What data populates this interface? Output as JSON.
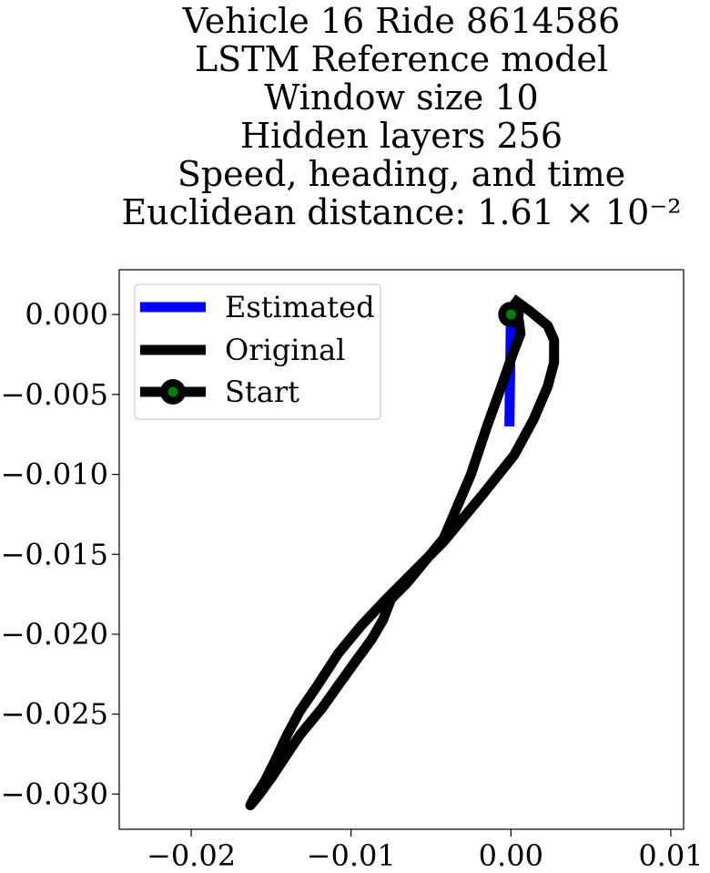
{
  "chart_data": {
    "type": "line",
    "title_lines": [
      "Vehicle 16 Ride 8614586",
      "LSTM Reference model",
      "Window size 10",
      "Hidden layers 256",
      "Speed, heading, and time",
      "Euclidean distance: 1.61 × 10⁻²"
    ],
    "xlabel": "",
    "ylabel": "",
    "xlim": [
      -0.0245,
      0.0108
    ],
    "ylim": [
      -0.0322,
      0.0028
    ],
    "x_ticks": [
      -0.02,
      -0.01,
      0.0,
      0.01
    ],
    "x_tick_labels": [
      "−0.02",
      "−0.01",
      "0.00",
      "0.01"
    ],
    "y_ticks": [
      0.0,
      -0.005,
      -0.01,
      -0.015,
      -0.02,
      -0.025,
      -0.03
    ],
    "y_tick_labels": [
      "0.000",
      "−0.005",
      "−0.010",
      "−0.015",
      "−0.020",
      "−0.025",
      "−0.030"
    ],
    "grid": false,
    "legend_position": "upper left",
    "legend": [
      "Estimated",
      "Original",
      "Start"
    ],
    "series": [
      {
        "name": "Estimated",
        "color": "#0000ff",
        "x": [
          0.0,
          -0.0001
        ],
        "y": [
          0.0,
          -0.007
        ]
      },
      {
        "name": "Original",
        "color": "#000000",
        "x": [
          0.0,
          0.0005,
          0.0006,
          0.0001,
          -0.0006,
          -0.0015,
          -0.0025,
          -0.0042,
          -0.0065,
          -0.0075,
          -0.008,
          -0.0087,
          -0.0098,
          -0.0108,
          -0.0118,
          -0.0132,
          -0.0142,
          -0.015,
          -0.0158,
          -0.0163,
          -0.0161,
          -0.0154,
          -0.0147,
          -0.014,
          -0.0132,
          -0.0121,
          -0.0108,
          -0.0094,
          -0.0078,
          -0.0064,
          -0.0042,
          -0.0018,
          0.0002,
          0.0014,
          0.0023,
          0.0027,
          0.0027,
          0.0023,
          0.0012,
          0.0001
        ],
        "y": [
          0.0,
          -0.0004,
          -0.0012,
          -0.0025,
          -0.0045,
          -0.007,
          -0.01,
          -0.014,
          -0.0168,
          -0.0178,
          -0.0191,
          -0.0203,
          -0.0218,
          -0.0232,
          -0.0246,
          -0.0263,
          -0.0278,
          -0.029,
          -0.0301,
          -0.0307,
          -0.0303,
          -0.0292,
          -0.0278,
          -0.0263,
          -0.0248,
          -0.0232,
          -0.0212,
          -0.0195,
          -0.0178,
          -0.0164,
          -0.0142,
          -0.0113,
          -0.0088,
          -0.0066,
          -0.0045,
          -0.003,
          -0.0016,
          -0.0007,
          0.0002,
          0.001
        ]
      },
      {
        "name": "Start",
        "color": "#000000",
        "marker_face": "#008000",
        "x": [
          0.0
        ],
        "y": [
          0.0
        ]
      }
    ]
  }
}
